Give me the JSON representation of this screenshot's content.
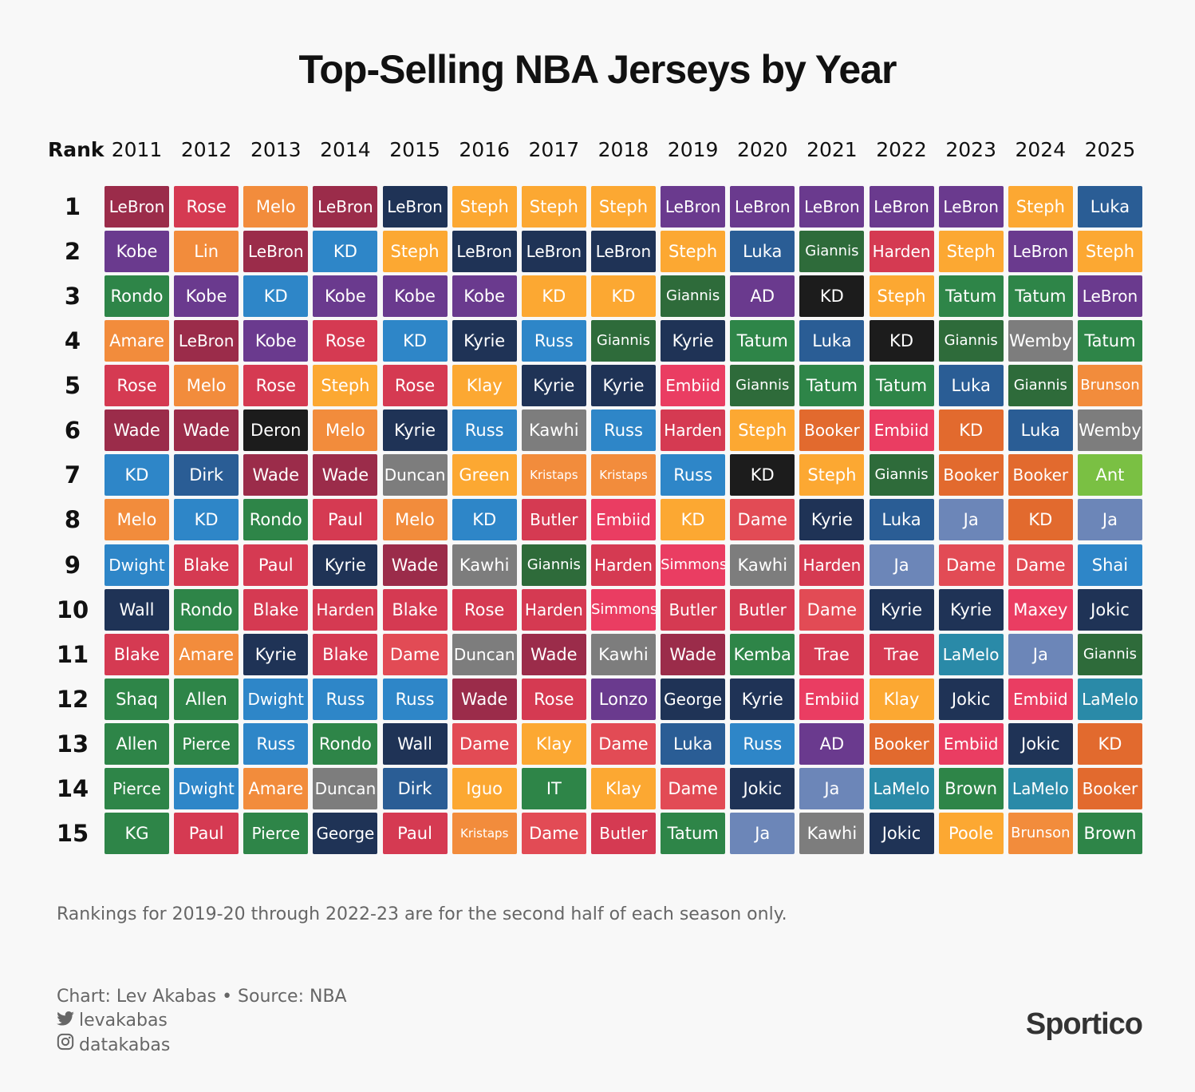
{
  "title": "Top-Selling NBA Jerseys by Year",
  "chart_data": {
    "type": "table",
    "title": "Top-Selling NBA Jerseys by Year",
    "rank_header": "Rank",
    "years": [
      "2011",
      "2012",
      "2013",
      "2014",
      "2015",
      "2016",
      "2017",
      "2018",
      "2019",
      "2020",
      "2021",
      "2022",
      "2023",
      "2024",
      "2025"
    ],
    "ranks": [
      "1",
      "2",
      "3",
      "4",
      "5",
      "6",
      "7",
      "8",
      "9",
      "10",
      "11",
      "12",
      "13",
      "14",
      "15"
    ],
    "rankings": [
      [
        "LeBron",
        "Kobe",
        "Rondo",
        "Amare",
        "Rose",
        "Wade",
        "KD",
        "Melo",
        "Dwight",
        "Wall",
        "Blake",
        "Shaq",
        "Allen",
        "Pierce",
        "KG"
      ],
      [
        "Rose",
        "Lin",
        "Kobe",
        "LeBron",
        "Melo",
        "Wade",
        "Dirk",
        "KD",
        "Blake",
        "Rondo",
        "Amare",
        "Allen",
        "Pierce",
        "Dwight",
        "Paul"
      ],
      [
        "Melo",
        "LeBron",
        "KD",
        "Kobe",
        "Rose",
        "Deron",
        "Wade",
        "Rondo",
        "Paul",
        "Blake",
        "Kyrie",
        "Dwight",
        "Russ",
        "Amare",
        "Pierce"
      ],
      [
        "LeBron",
        "KD",
        "Kobe",
        "Rose",
        "Steph",
        "Melo",
        "Wade",
        "Paul",
        "Kyrie",
        "Harden",
        "Blake",
        "Russ",
        "Rondo",
        "Duncan",
        "George"
      ],
      [
        "LeBron",
        "Steph",
        "Kobe",
        "KD",
        "Rose",
        "Kyrie",
        "Duncan",
        "Melo",
        "Wade",
        "Blake",
        "Dame",
        "Russ",
        "Wall",
        "Dirk",
        "Paul"
      ],
      [
        "Steph",
        "LeBron",
        "Kobe",
        "Kyrie",
        "Klay",
        "Russ",
        "Green",
        "KD",
        "Kawhi",
        "Rose",
        "Duncan",
        "Wade",
        "Dame",
        "Iguo",
        "Kristaps"
      ],
      [
        "Steph",
        "LeBron",
        "KD",
        "Russ",
        "Kyrie",
        "Kawhi",
        "Kristaps",
        "Butler",
        "Giannis",
        "Harden",
        "Wade",
        "Rose",
        "Klay",
        "IT",
        "Dame"
      ],
      [
        "Steph",
        "LeBron",
        "KD",
        "Giannis",
        "Kyrie",
        "Russ",
        "Kristaps",
        "Embiid",
        "Harden",
        "Simmons",
        "Kawhi",
        "Lonzo",
        "Dame",
        "Klay",
        "Butler"
      ],
      [
        "LeBron",
        "Steph",
        "Giannis",
        "Kyrie",
        "Embiid",
        "Harden",
        "Russ",
        "KD",
        "Simmons",
        "Butler",
        "Wade",
        "George",
        "Luka",
        "Dame",
        "Tatum"
      ],
      [
        "LeBron",
        "Luka",
        "AD",
        "Tatum",
        "Giannis",
        "Steph",
        "KD",
        "Dame",
        "Kawhi",
        "Butler",
        "Kemba",
        "Kyrie",
        "Russ",
        "Jokic",
        "Ja"
      ],
      [
        "LeBron",
        "Giannis",
        "KD",
        "Luka",
        "Tatum",
        "Booker",
        "Steph",
        "Kyrie",
        "Harden",
        "Dame",
        "Trae",
        "Embiid",
        "AD",
        "Ja",
        "Kawhi"
      ],
      [
        "LeBron",
        "Harden",
        "Steph",
        "KD",
        "Tatum",
        "Embiid",
        "Giannis",
        "Luka",
        "Ja",
        "Kyrie",
        "Trae",
        "Klay",
        "Booker",
        "LaMelo",
        "Jokic"
      ],
      [
        "LeBron",
        "Steph",
        "Tatum",
        "Giannis",
        "Luka",
        "KD",
        "Booker",
        "Ja",
        "Dame",
        "Kyrie",
        "LaMelo",
        "Jokic",
        "Embiid",
        "Brown",
        "Poole"
      ],
      [
        "Steph",
        "LeBron",
        "Tatum",
        "Wemby",
        "Giannis",
        "Luka",
        "Booker",
        "KD",
        "Dame",
        "Maxey",
        "Ja",
        "Embiid",
        "Jokic",
        "LaMelo",
        "Brunson"
      ],
      [
        "Luka",
        "Steph",
        "LeBron",
        "Tatum",
        "Brunson",
        "Wemby",
        "Ant",
        "Ja",
        "Shai",
        "Jokic",
        "Giannis",
        "LaMelo",
        "KD",
        "Booker",
        "Brown"
      ]
    ],
    "player_colors": {
      "LeBron": {
        "2011": "#9b2c4a",
        "2012": "#9b2c4a",
        "2013": "#9b2c4a",
        "2014": "#9b2c4a",
        "2015": "#1f3356",
        "2016": "#1f3356",
        "2017": "#1f3356",
        "2018": "#1f3356",
        "default": "#6a3a8e"
      },
      "Kobe": "#6a3a8e",
      "Rondo": "#2e8548",
      "Amare": "#f28c3c",
      "Rose": "#d53a52",
      "Wade": "#9b2c4a",
      "KD": {
        "2014": "#2e86c8",
        "2015": "#2e86c8",
        "2016": "#2e86c8",
        "2011": "#2e86c8",
        "2012": "#2e86c8",
        "2013": "#2e86c8",
        "2017": "#fca832",
        "2018": "#fca832",
        "2019": "#fca832",
        "2020": "#1c1c1c",
        "2021": "#1c1c1c",
        "2022": "#1c1c1c",
        "default": "#e26a2e"
      },
      "Melo": "#f28c3c",
      "Dwight": "#2e86c8",
      "Wall": "#1f3356",
      "Blake": "#d53a52",
      "Shaq": "#2e8548",
      "Allen": "#2e8548",
      "Pierce": "#2e8548",
      "KG": "#2e8548",
      "Lin": "#f28c3c",
      "Dirk": "#2a5d95",
      "Paul": "#d53a52",
      "Deron": "#1c1c1c",
      "Kyrie": "#1f3356",
      "Russ": "#2e86c8",
      "Steph": "#fca832",
      "Harden": "#d53a52",
      "Duncan": "#7d7d7d",
      "George": "#1f3356",
      "Dame": "#e24b55",
      "Klay": "#fca832",
      "Green": "#fca832",
      "Kawhi": "#7d7d7d",
      "Iguo": "#fca832",
      "Kristaps": "#f28c3c",
      "Butler": "#d53a52",
      "Giannis": "#2e6b3a",
      "IT": "#2e8548",
      "Embiid": "#ea3d62",
      "Simmons": "#ea3d62",
      "Lonzo": "#6a3a8e",
      "Tatum": "#2e8548",
      "Luka": "#2a5d95",
      "AD": "#6a3a8e",
      "Jokic": "#1f3356",
      "Ja": "#6c86b8",
      "Kemba": "#2e8548",
      "Booker": "#e26a2e",
      "Trae": "#d53a52",
      "LaMelo": "#2a8aa8",
      "Brown": "#2e8548",
      "Poole": "#fca832",
      "Wemby": "#7d7d7d",
      "Maxey": "#ea3d62",
      "Brunson": "#f28c3c",
      "Ant": "#7ac043",
      "Shai": "#2e86c8"
    }
  },
  "footnote": "Rankings for 2019-20 through 2022-23 are for the second half of each season only.",
  "credits": {
    "byline": "Chart: Lev Akabas • Source: NBA",
    "twitter": "levakabas",
    "instagram": "datakabas"
  },
  "brand": "Sportico"
}
